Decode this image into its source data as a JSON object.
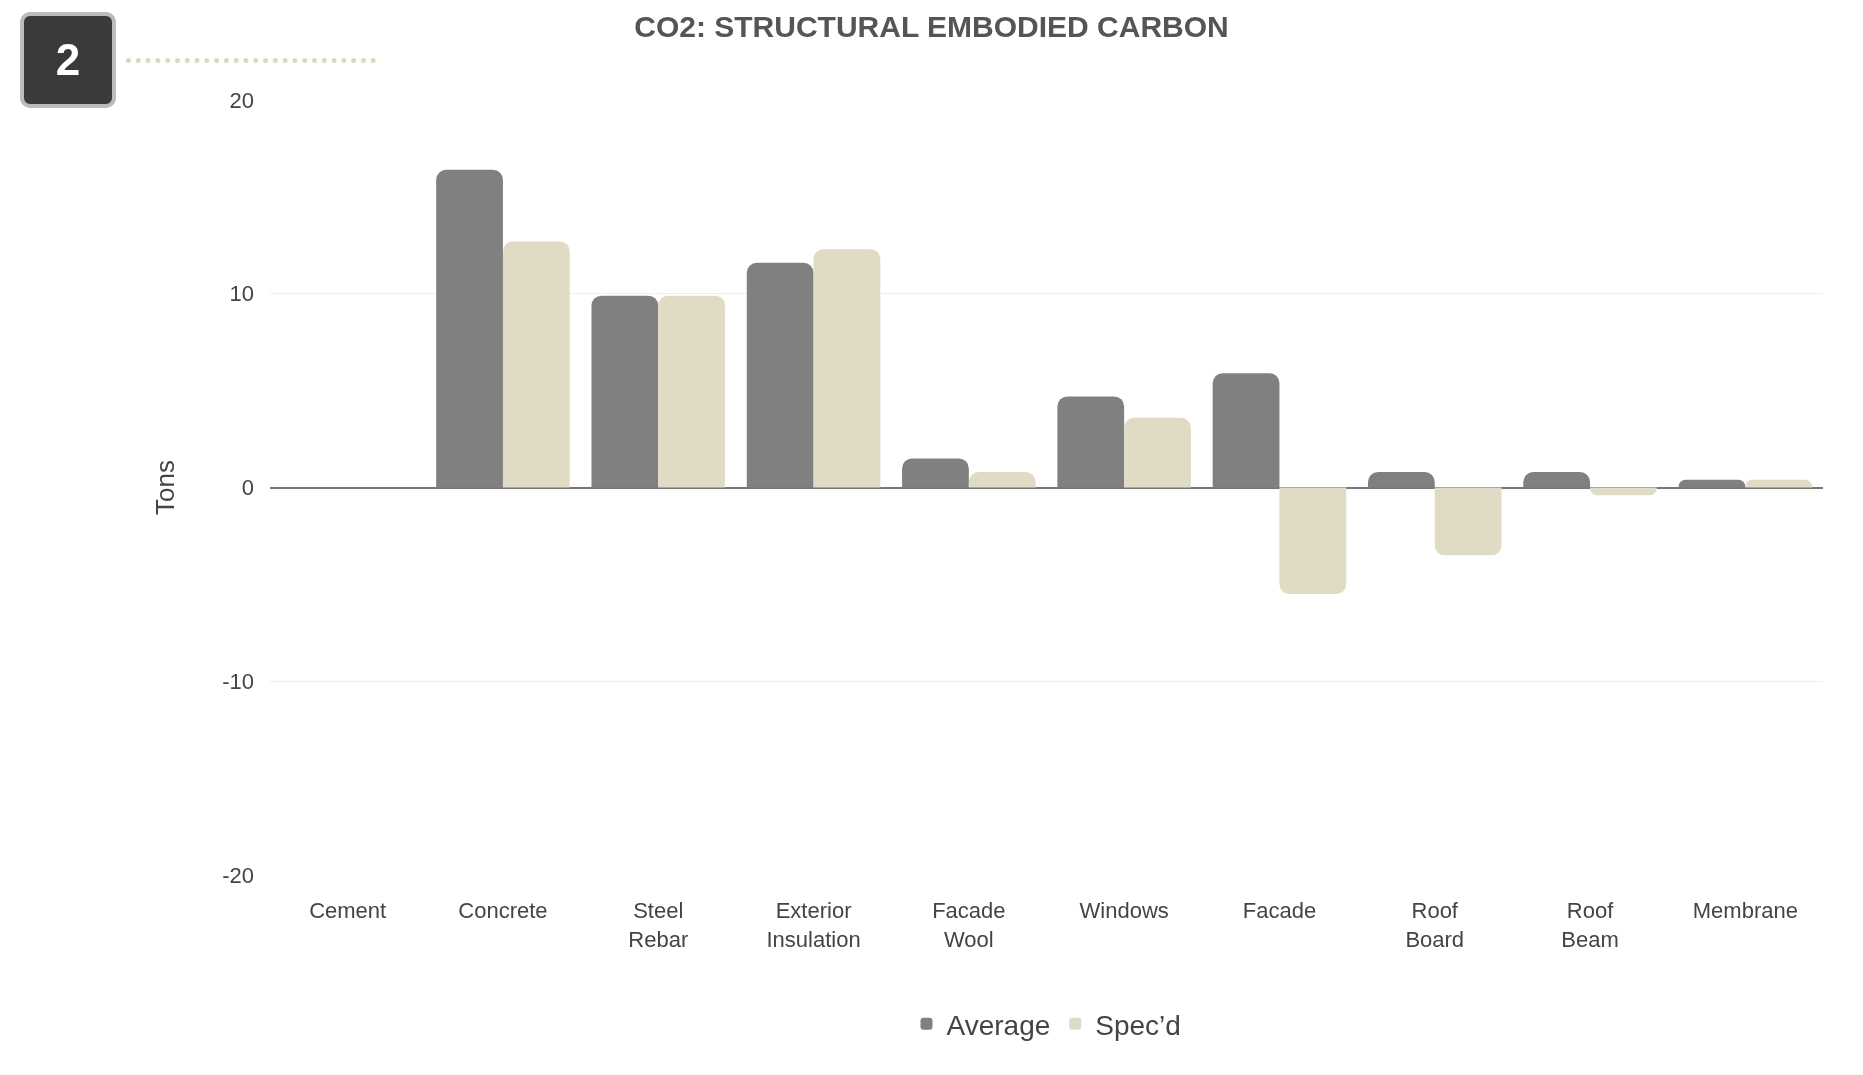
{
  "chart_data": {
    "type": "bar",
    "title": "CO2: STRUCTURAL EMBODIED CARBON",
    "ylabel": "Tons",
    "annotations": [
      "2"
    ],
    "categories": [
      "Cement",
      "Concrete",
      "Steel\nRebar",
      "Exterior\nInsulation",
      "Facade\nWool",
      "Windows",
      "Facade",
      "Roof\nBoard",
      "Roof\nBeam",
      "Membrane"
    ],
    "series": [
      {
        "name": "Average",
        "color": "#808080",
        "values": [
          null,
          16.4,
          9.9,
          11.6,
          1.5,
          4.7,
          5.9,
          0.8,
          0.8,
          0.4
        ]
      },
      {
        "name": "Spec’d",
        "color": "#dfdbc4",
        "values": [
          null,
          12.7,
          9.9,
          12.3,
          0.8,
          3.6,
          -5.5,
          -3.5,
          -0.4,
          0.4
        ]
      }
    ],
    "ylim": [
      -20,
      20
    ],
    "yticks": [
      -20,
      -10,
      0,
      10,
      20
    ],
    "grid": "y",
    "legend": "bottom"
  }
}
